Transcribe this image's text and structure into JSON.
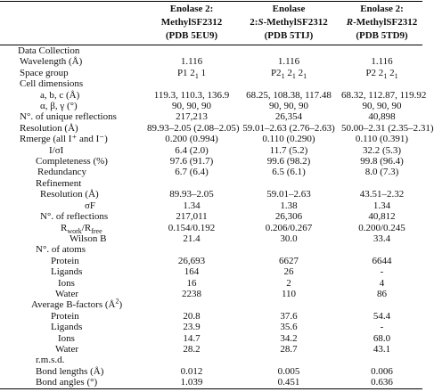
{
  "table": {
    "columns": [
      {
        "lines": [
          "Enolase 2:",
          "MethylSF2312",
          "(PDB 5EU9)"
        ]
      },
      {
        "lines": [
          "Enolase",
          [
            "2:",
            {
              "em": "S"
            },
            "-MethylSF2312"
          ],
          "(PDB 5TIJ)"
        ]
      },
      {
        "lines": [
          "Enolase 2:",
          [
            {
              "em": "R"
            },
            "-MethylSF2312"
          ],
          "(PDB 5TD9)"
        ]
      }
    ],
    "rows": [
      {
        "label": "Data Collection"
      },
      {
        "label": "Wavelength (Å)",
        "values": [
          "1.116",
          "1.116",
          "1.116"
        ]
      },
      {
        "label": "Space group",
        "values": [
          [
            "P1 2",
            {
              "sub": "1"
            },
            " 1"
          ],
          [
            "P2",
            {
              "sub": "1"
            },
            " 2",
            {
              "sub": "1"
            },
            " 2",
            {
              "sub": "1"
            }
          ],
          [
            "P2 2",
            {
              "sub": "1"
            },
            " 2",
            {
              "sub": "1"
            }
          ]
        ]
      },
      {
        "label": "Cell dimensions"
      },
      {
        "label": "a, b, c (Å)",
        "values": [
          "119.3, 110.3, 136.9",
          "68.25, 108.38, 117.48",
          "68.32, 112.87, 119.92"
        ]
      },
      {
        "label": "α, β, γ (°)",
        "values": [
          "90, 90, 90",
          "90, 90, 90",
          "90, 90, 90"
        ]
      },
      {
        "label": "N°. of unique reflections",
        "values": [
          "217,213",
          "26,354",
          "40,898"
        ]
      },
      {
        "label": "Resolution (Å)",
        "values": [
          "89.93–2.05 (2.08–2.05)",
          "59.01–2.63 (2.76–2.63)",
          "50.00–2.31 (2.35–2.31)"
        ]
      },
      {
        "label": "Rmerge (all I⁺ and I⁻)",
        "values": [
          "0.200 (0.994)",
          "0.110 (0.290)",
          "0.110 (0.391)"
        ]
      },
      {
        "label": "I/σI",
        "values": [
          "6.4 (2.0)",
          "11.7 (5.2)",
          "32.2 (5.3)"
        ]
      },
      {
        "label": "Completeness (%)",
        "values": [
          "97.6 (91.7)",
          "99.6 (98.2)",
          "99.8 (96.4)"
        ]
      },
      {
        "label": "Redundancy",
        "values": [
          "6.7 (6.4)",
          "6.5 (6.1)",
          "8.0 (7.3)"
        ]
      },
      {
        "label": "Refinement"
      },
      {
        "label": "Resolution (Å)",
        "values": [
          "89.93–2.05",
          "59.01–2.63",
          "43.51–2.32"
        ]
      },
      {
        "label": "σF",
        "values": [
          "1.34",
          "1.38",
          "1.34"
        ]
      },
      {
        "label": "N°. of reflections",
        "values": [
          "217,011",
          "26,306",
          "40,812"
        ]
      },
      {
        "label": [
          "R",
          {
            "sub": "work"
          },
          "/R",
          {
            "sub": "free"
          }
        ],
        "values": [
          "0.154/0.192",
          "0.206/0.267",
          "0.200/0.245"
        ]
      },
      {
        "label": "Wilson B",
        "values": [
          "21.4",
          "30.0",
          "33.4"
        ]
      },
      {
        "label": "N°. of atoms"
      },
      {
        "label": "Protein",
        "values": [
          "26,693",
          "6627",
          "6644"
        ]
      },
      {
        "label": "Ligands",
        "values": [
          "164",
          "26",
          "-"
        ]
      },
      {
        "label": "Ions",
        "values": [
          "16",
          "2",
          "4"
        ]
      },
      {
        "label": "Water",
        "values": [
          "2238",
          "110",
          "86"
        ]
      },
      {
        "label": [
          "Average B-factors (Å",
          {
            "sup": "2"
          },
          ")"
        ]
      },
      {
        "label": "Protein",
        "values": [
          "20.8",
          "37.6",
          "54.4"
        ]
      },
      {
        "label": "Ligands",
        "values": [
          "23.9",
          "35.6",
          "-"
        ]
      },
      {
        "label": "Ions",
        "values": [
          "14.7",
          "34.2",
          "68.0"
        ]
      },
      {
        "label": "Water",
        "values": [
          "28.2",
          "28.7",
          "43.1"
        ]
      },
      {
        "label": "r.m.s.d."
      },
      {
        "label": "Bond lengths (Å)",
        "values": [
          "0.012",
          "0.005",
          "0.006"
        ]
      },
      {
        "label": "Bond angles (°)",
        "values": [
          "1.039",
          "0.451",
          "0.636"
        ]
      }
    ]
  }
}
